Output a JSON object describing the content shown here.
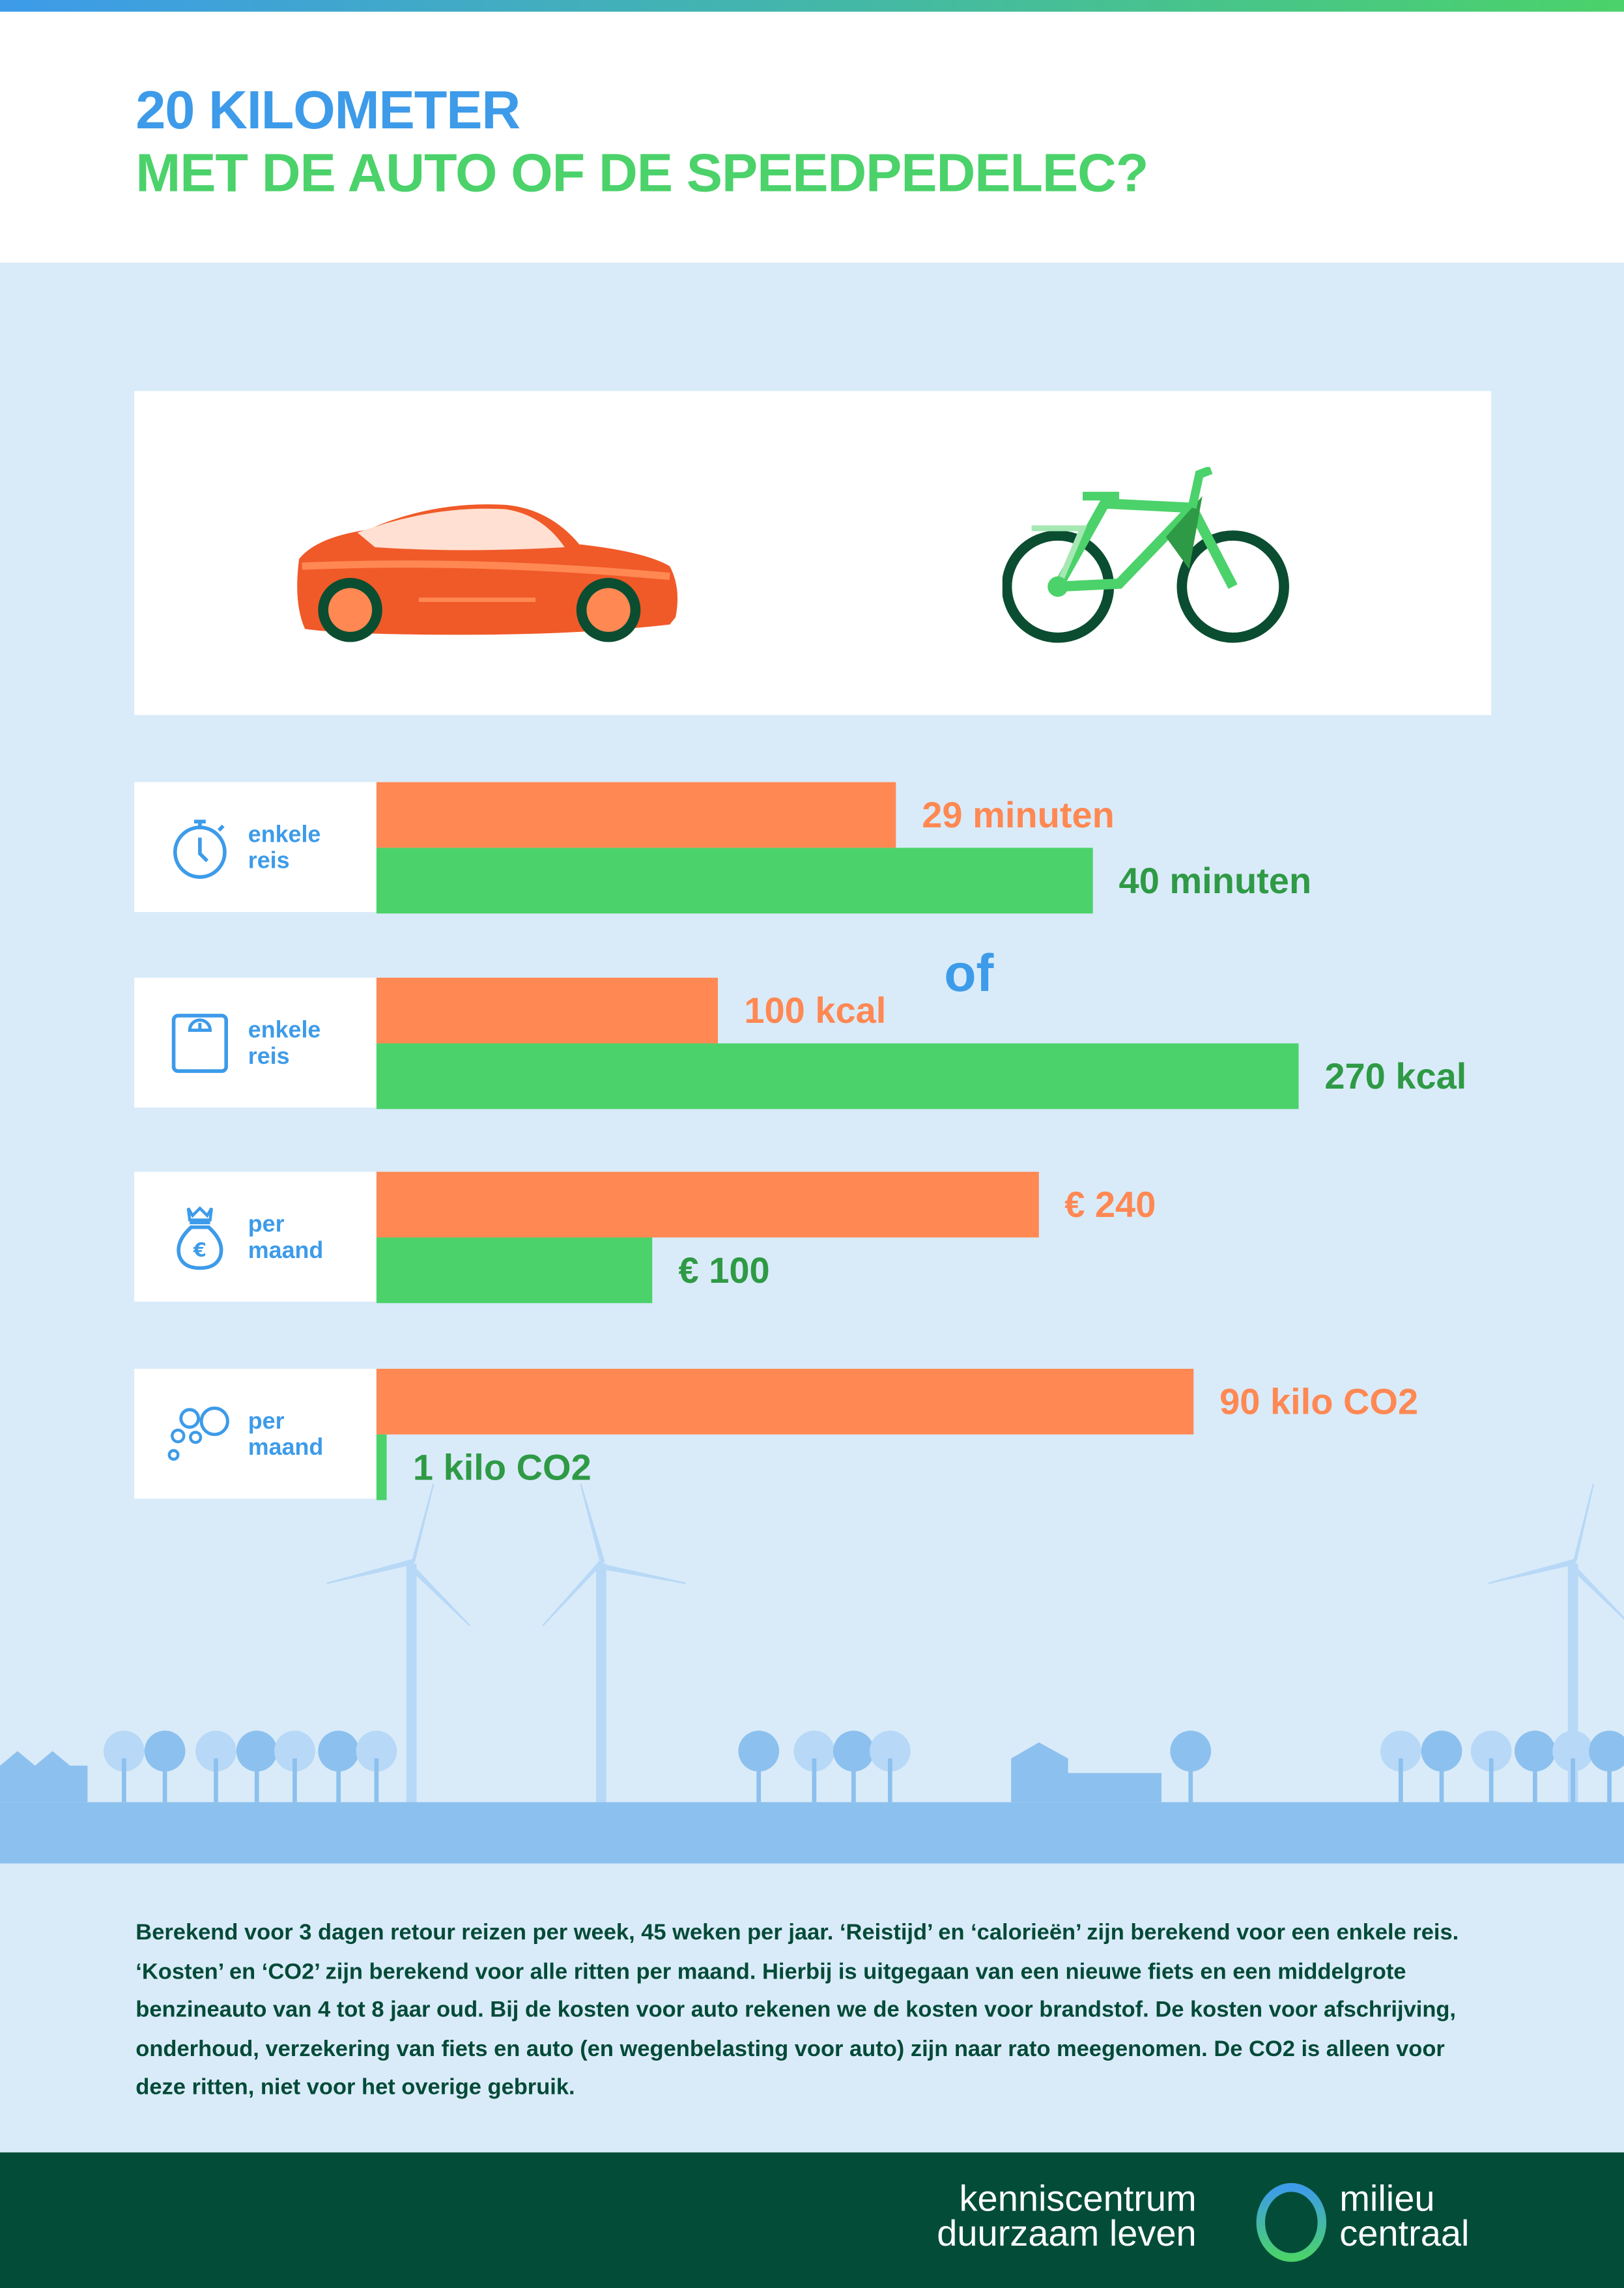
{
  "header": {
    "title_line1": "20 KILOMETER",
    "title_line2": "MET DE AUTO OF DE SPEEDPEDELEC?"
  },
  "comparison": {
    "left_icon": "car-icon",
    "or_label": "of",
    "right_icon": "speed-pedelec-icon"
  },
  "colors": {
    "car": "#ff8853",
    "bike": "#4bd26a",
    "accent_blue": "#3d9be9",
    "footer_bg": "#034d38"
  },
  "chart_data": {
    "type": "bar",
    "orientation": "horizontal",
    "series": [
      {
        "key": "car",
        "color": "#ff8853"
      },
      {
        "key": "speedpedelec",
        "color": "#4bd26a"
      }
    ],
    "rows": [
      {
        "icon": "stopwatch-icon",
        "label_line1": "enkele",
        "label_line2": "reis",
        "car": 29,
        "bike": 40,
        "car_label": "29 minuten",
        "bike_label": "40 minuten"
      },
      {
        "icon": "scale-icon",
        "label_line1": "enkele",
        "label_line2": "reis",
        "car": 100,
        "bike": 270,
        "car_label": "100 kcal",
        "bike_label": "270 kcal"
      },
      {
        "icon": "money-bag-icon",
        "label_line1": "per",
        "label_line2": "maand",
        "car": 240,
        "bike": 100,
        "car_label": "€ 240",
        "bike_label": "€ 100"
      },
      {
        "icon": "co2-bubbles-icon",
        "label_line1": "per",
        "label_line2": "maand",
        "car": 90,
        "bike": 1,
        "car_label": "90 kilo CO2",
        "bike_label": "1 kilo CO2"
      }
    ]
  },
  "note": "Berekend voor 3 dagen retour reizen per week, 45 weken per jaar. ‘Reistijd’ en ‘calorieën’ zijn berekend voor een enkele reis. ‘Kosten’ en ‘CO2’ zijn berekend voor alle ritten per maand. Hierbij is uitgegaan van een nieuwe fiets en een middelgrote benzineauto van 4 tot 8 jaar oud. Bij de kosten voor auto rekenen we de kosten voor brandstof. De kosten voor afschrijving, onderhoud, verzekering van fiets en auto (en wegenbelasting voor auto) zijn naar rato meegenomen. De CO2 is alleen voor deze ritten, niet voor het overige gebruik.",
  "footer": {
    "logo_left_line1": "kenniscentrum",
    "logo_left_line2": "duurzaam leven",
    "logo_right_line1": "milieu",
    "logo_right_line2": "centraal"
  }
}
